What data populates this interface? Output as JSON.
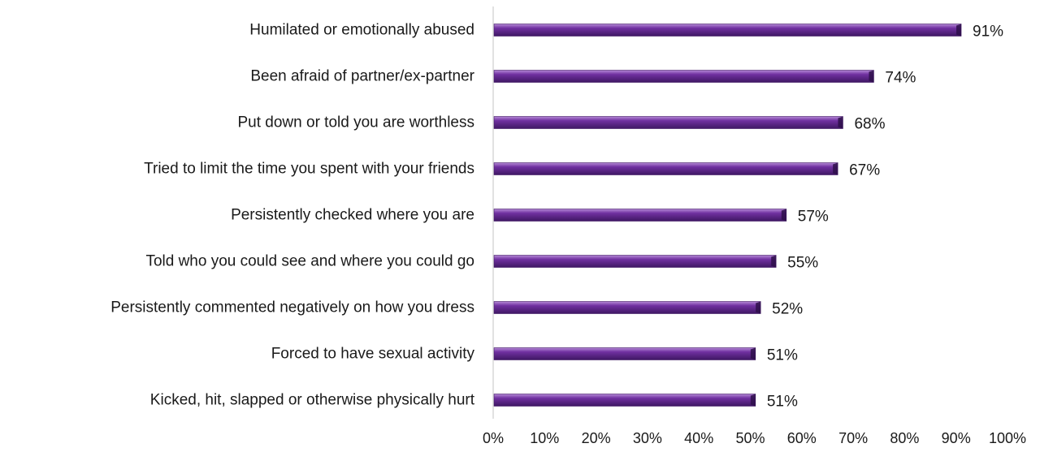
{
  "chart_data": {
    "type": "bar",
    "orientation": "horizontal",
    "categories": [
      "Humilated or emotionally abused",
      "Been afraid of partner/ex-partner",
      "Put down or told you are worthless",
      "Tried to limit the time you spent with your friends",
      "Persistently checked where you are",
      "Told who you could see and where you could go",
      "Persistently commented negatively on how you dress",
      "Forced to have sexual activity",
      "Kicked, hit, slapped or otherwise physically hurt"
    ],
    "values": [
      91,
      74,
      68,
      67,
      57,
      55,
      52,
      51,
      51
    ],
    "value_labels": [
      "91%",
      "74%",
      "68%",
      "67%",
      "57%",
      "55%",
      "52%",
      "51%",
      "51%"
    ],
    "x_ticks": [
      "0%",
      "10%",
      "20%",
      "30%",
      "40%",
      "50%",
      "60%",
      "70%",
      "80%",
      "90%",
      "100%"
    ],
    "xlim": [
      0,
      100
    ],
    "unit": "%",
    "grid": false,
    "legend": "none",
    "title": "",
    "xlabel": "",
    "ylabel": "",
    "colors": {
      "bar": "#7030a0",
      "bar_highlight": "#b58ad6",
      "bar_shadow": "#3f1763",
      "axis": "#d9d9d9"
    }
  }
}
